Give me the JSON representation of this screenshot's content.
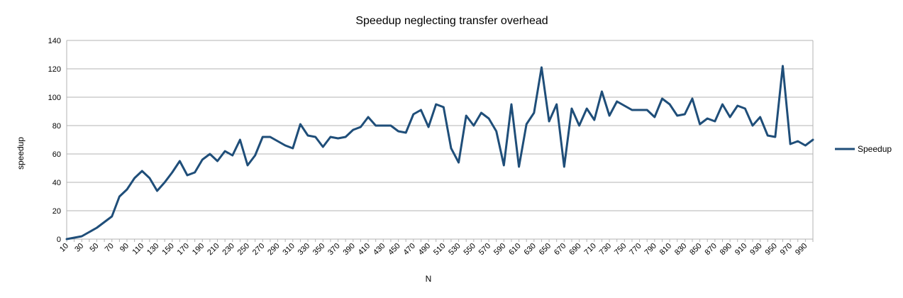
{
  "chart_data": {
    "type": "line",
    "title": "Speedup neglecting transfer overhead",
    "xlabel": "N",
    "ylabel": "speedup",
    "ylim": [
      0,
      140
    ],
    "yticks": [
      0,
      20,
      40,
      60,
      80,
      100,
      120,
      140
    ],
    "grid": true,
    "legend_position": "right",
    "series_color": "#1f4e79",
    "x": [
      10,
      20,
      30,
      40,
      50,
      60,
      70,
      80,
      90,
      100,
      110,
      120,
      130,
      140,
      150,
      160,
      170,
      180,
      190,
      200,
      210,
      220,
      230,
      240,
      250,
      260,
      270,
      280,
      290,
      300,
      310,
      320,
      330,
      340,
      350,
      360,
      370,
      380,
      390,
      400,
      410,
      420,
      430,
      440,
      450,
      460,
      470,
      480,
      490,
      500,
      510,
      520,
      530,
      540,
      550,
      560,
      570,
      580,
      590,
      600,
      610,
      620,
      630,
      640,
      650,
      660,
      670,
      680,
      690,
      700,
      710,
      720,
      730,
      740,
      750,
      760,
      770,
      780,
      790,
      800,
      810,
      820,
      830,
      840,
      850,
      860,
      870,
      880,
      890,
      900,
      910,
      920,
      930,
      940,
      950,
      960,
      970,
      980,
      990,
      1000
    ],
    "x_tick_labels": [
      "10",
      "30",
      "50",
      "70",
      "90",
      "110",
      "130",
      "150",
      "170",
      "190",
      "210",
      "230",
      "250",
      "270",
      "290",
      "310",
      "330",
      "350",
      "370",
      "390",
      "410",
      "430",
      "450",
      "470",
      "490",
      "510",
      "530",
      "550",
      "570",
      "590",
      "610",
      "630",
      "650",
      "670",
      "690",
      "710",
      "730",
      "750",
      "770",
      "790",
      "810",
      "830",
      "850",
      "870",
      "890",
      "910",
      "930",
      "950",
      "970",
      "990"
    ],
    "series": [
      {
        "name": "Speedup",
        "values": [
          0,
          1,
          2,
          5,
          8,
          12,
          16,
          30,
          35,
          43,
          48,
          43,
          34,
          40,
          47,
          55,
          45,
          47,
          56,
          60,
          55,
          62,
          59,
          70,
          52,
          59,
          72,
          72,
          69,
          66,
          64,
          81,
          73,
          72,
          65,
          72,
          71,
          72,
          77,
          79,
          86,
          80,
          80,
          80,
          76,
          75,
          88,
          91,
          79,
          95,
          93,
          64,
          54,
          87,
          80,
          89,
          85,
          76,
          52,
          95,
          51,
          81,
          89,
          121,
          83,
          95,
          51,
          92,
          80,
          92,
          84,
          104,
          87,
          97,
          94,
          91,
          91,
          91,
          86,
          99,
          95,
          87,
          88,
          99,
          81,
          85,
          83,
          95,
          86,
          94,
          92,
          80,
          86,
          73,
          72,
          122,
          67,
          69,
          66,
          70
        ]
      }
    ]
  }
}
